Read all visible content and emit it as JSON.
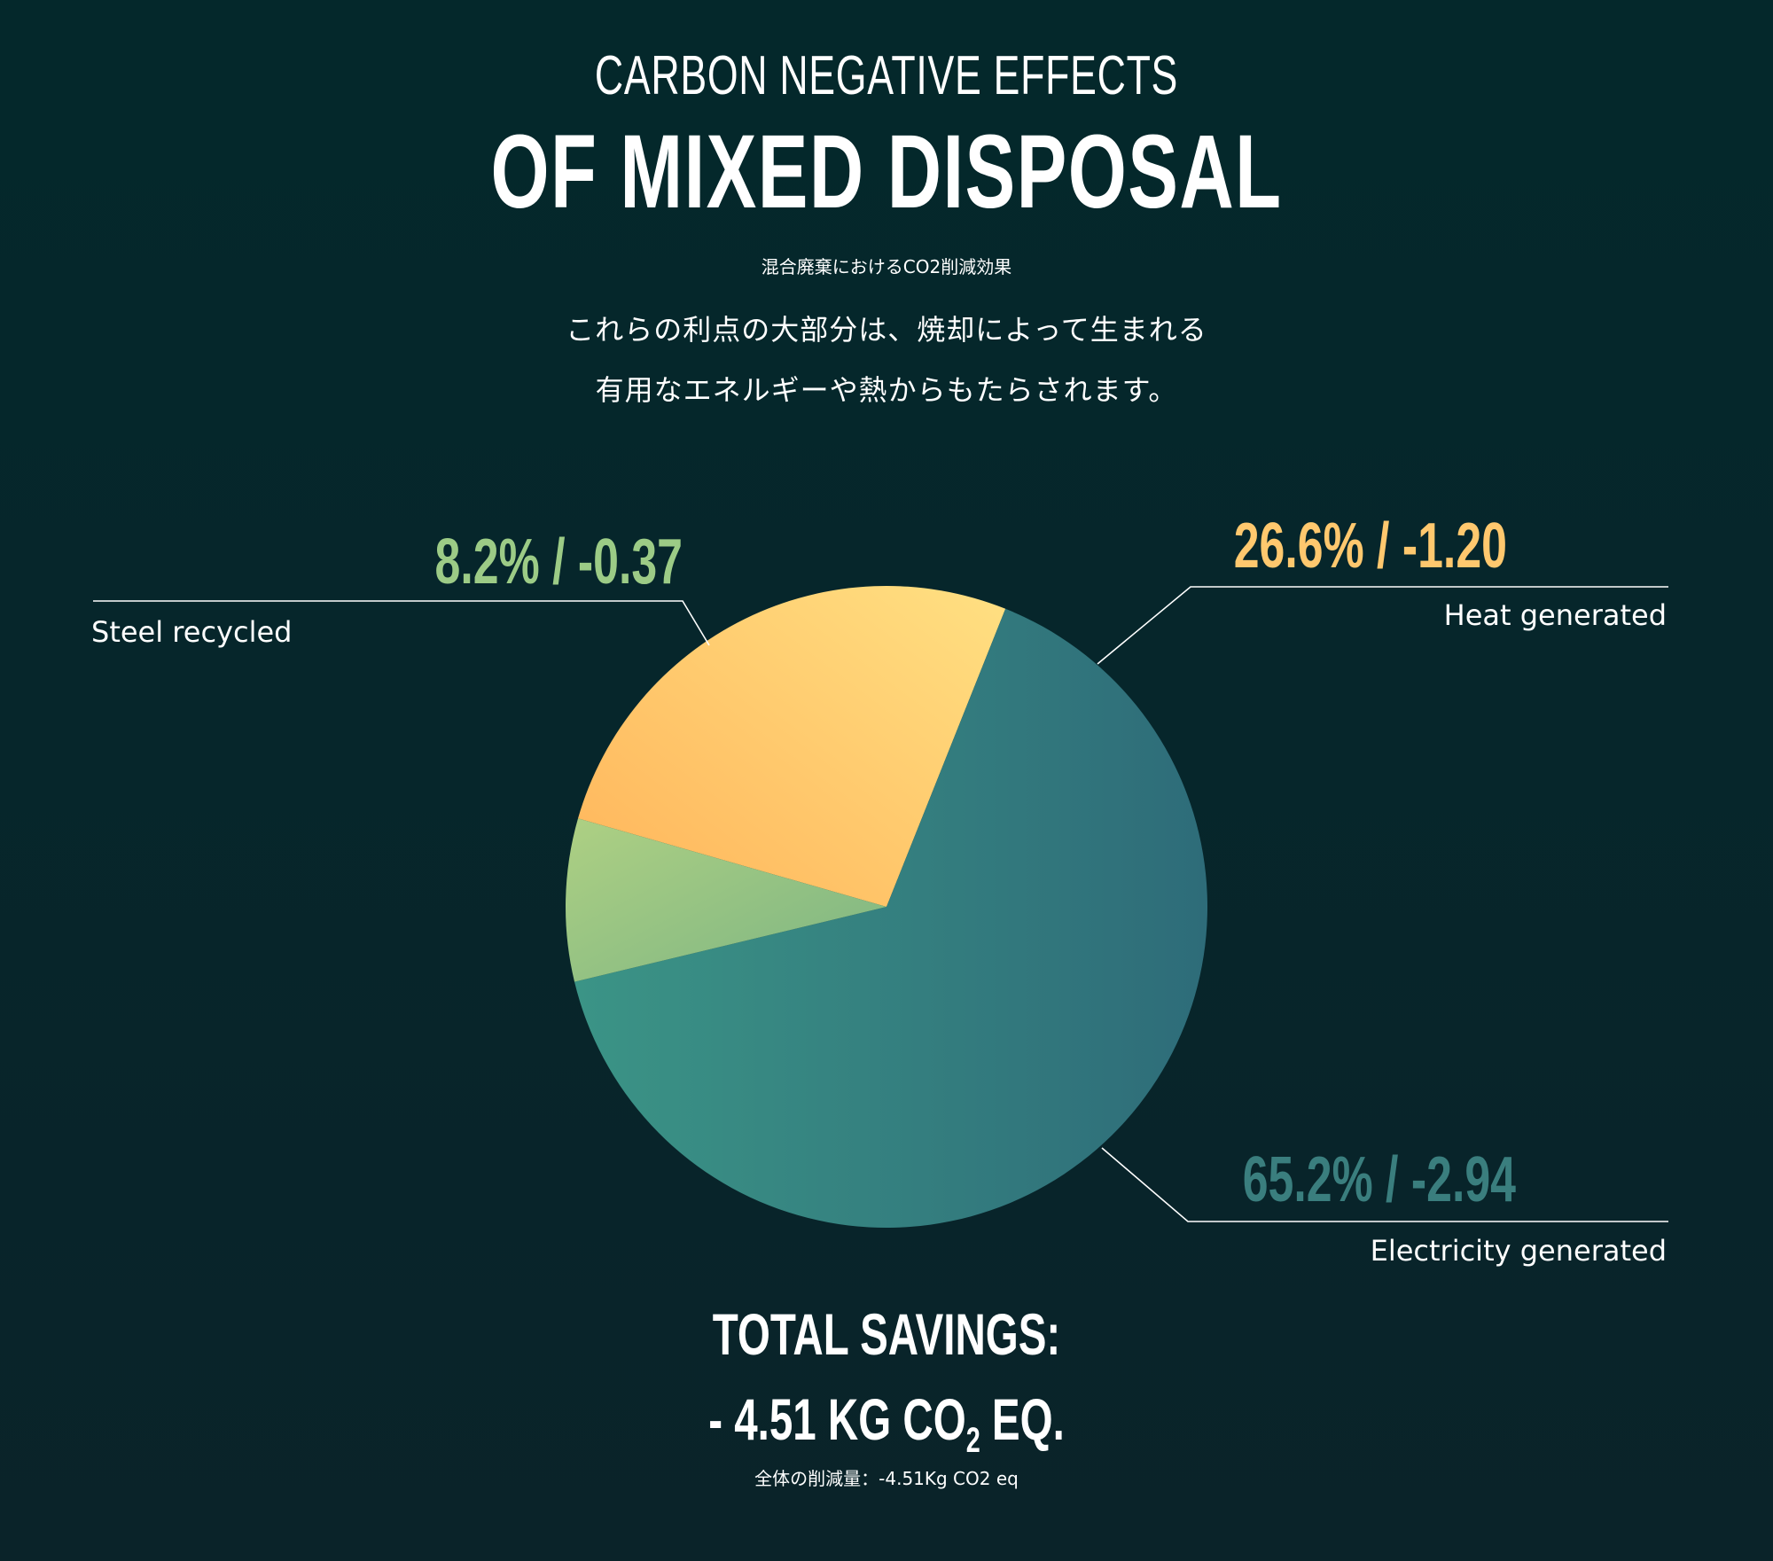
{
  "header": {
    "title_line1": "CARBON NEGATIVE EFFECTS",
    "title_line2": "OF MIXED DISPOSAL",
    "subtitle_jp": "混合廃棄におけるCO2削減効果",
    "description_line1": "これらの利点の大部分は、焼却によって生まれる",
    "description_line2": "有用なエネルギーや熱からもたらされます。"
  },
  "chart_data": {
    "type": "pie",
    "slices": [
      {
        "category": "Heat generated",
        "percent": 26.6,
        "value": -1.2,
        "label": "26.6% / -1.20",
        "color_light": "#ffe082",
        "color_dark": "#ffb45a",
        "label_color": "#ffc86e"
      },
      {
        "category": "Electricity generated",
        "percent": 65.2,
        "value": -2.94,
        "label": "65.2% / -2.94",
        "color_light": "#3b9486",
        "color_dark": "#2e6c79",
        "label_color": "#3a7e7e"
      },
      {
        "category": "Steel recycled",
        "percent": 8.2,
        "value": -0.37,
        "label": "8.2% / -0.37",
        "color_light": "#aed083",
        "color_dark": "#7cb583",
        "label_color": "#9ccb86"
      }
    ]
  },
  "total": {
    "label": "TOTAL SAVINGS:",
    "value_prefix": "- 4.51 KG CO",
    "value_subscript": "2",
    "value_suffix": " EQ.",
    "note_jp": "全体の削減量：-4.51Kg CO2 eq"
  }
}
